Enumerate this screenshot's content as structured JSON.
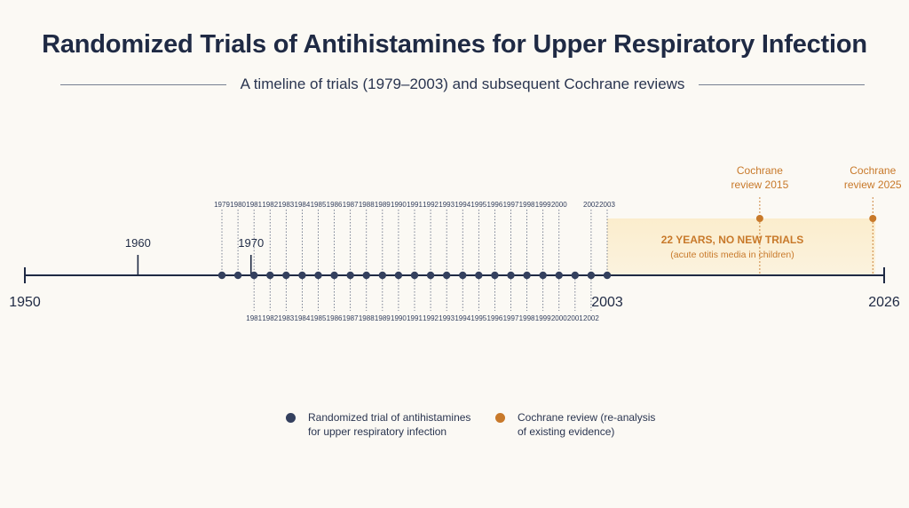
{
  "title": "Randomized Trials of Antihistamines for Upper Respiratory Infection",
  "subtitle": "A timeline of trials (1979–2003) and subsequent Cochrane reviews",
  "colors": {
    "trial": "#34405e",
    "review": "#c8792a",
    "axis": "#1f2a44",
    "gap_fill": "#fbedcd"
  },
  "chart_data": {
    "type": "timeline",
    "axis_start": 1950,
    "axis_end": 2026,
    "axis_start_label": "1950",
    "axis_end_label": "2026",
    "reference_years": [
      {
        "year": 1960,
        "label": "1960"
      },
      {
        "year": 1970,
        "label": "1970"
      }
    ],
    "trials": [
      {
        "year": 1979,
        "label": "1979",
        "pos": "above"
      },
      {
        "year": 1980,
        "label": "1980",
        "pos": "above"
      },
      {
        "year": 1981,
        "label": "1981",
        "pos": "above"
      },
      {
        "year": 1981,
        "label": "1981",
        "pos": "below"
      },
      {
        "year": 1982,
        "label": "1982",
        "pos": "above"
      },
      {
        "year": 1982,
        "label": "1982",
        "pos": "below"
      },
      {
        "year": 1983,
        "label": "1983",
        "pos": "above"
      },
      {
        "year": 1983,
        "label": "1983",
        "pos": "below"
      },
      {
        "year": 1984,
        "label": "1984",
        "pos": "above"
      },
      {
        "year": 1984,
        "label": "1984",
        "pos": "below"
      },
      {
        "year": 1985,
        "label": "1985",
        "pos": "above"
      },
      {
        "year": 1985,
        "label": "1985",
        "pos": "below"
      },
      {
        "year": 1986,
        "label": "1986",
        "pos": "above"
      },
      {
        "year": 1986,
        "label": "1986",
        "pos": "below"
      },
      {
        "year": 1987,
        "label": "1987",
        "pos": "above"
      },
      {
        "year": 1987,
        "label": "1987",
        "pos": "below"
      },
      {
        "year": 1988,
        "label": "1988",
        "pos": "above"
      },
      {
        "year": 1988,
        "label": "1988",
        "pos": "below"
      },
      {
        "year": 1989,
        "label": "1989",
        "pos": "above"
      },
      {
        "year": 1989,
        "label": "1989",
        "pos": "below"
      },
      {
        "year": 1990,
        "label": "1990",
        "pos": "above"
      },
      {
        "year": 1990,
        "label": "1990",
        "pos": "below"
      },
      {
        "year": 1991,
        "label": "1991",
        "pos": "above"
      },
      {
        "year": 1991,
        "label": "1991",
        "pos": "below"
      },
      {
        "year": 1992,
        "label": "1992",
        "pos": "above"
      },
      {
        "year": 1992,
        "label": "1992",
        "pos": "below"
      },
      {
        "year": 1993,
        "label": "1993",
        "pos": "above"
      },
      {
        "year": 1993,
        "label": "1993",
        "pos": "below"
      },
      {
        "year": 1994,
        "label": "1994",
        "pos": "above"
      },
      {
        "year": 1994,
        "label": "1994",
        "pos": "below"
      },
      {
        "year": 1995,
        "label": "1995",
        "pos": "above"
      },
      {
        "year": 1995,
        "label": "1995",
        "pos": "below"
      },
      {
        "year": 1996,
        "label": "1996",
        "pos": "above"
      },
      {
        "year": 1996,
        "label": "1996",
        "pos": "below"
      },
      {
        "year": 1997,
        "label": "1997",
        "pos": "above"
      },
      {
        "year": 1997,
        "label": "1997",
        "pos": "below"
      },
      {
        "year": 1998,
        "label": "1998",
        "pos": "above"
      },
      {
        "year": 1998,
        "label": "1998",
        "pos": "below"
      },
      {
        "year": 1999,
        "label": "1999",
        "pos": "above"
      },
      {
        "year": 1999,
        "label": "1999",
        "pos": "below"
      },
      {
        "year": 2000,
        "label": "2000",
        "pos": "above"
      },
      {
        "year": 2000,
        "label": "2000",
        "pos": "below"
      },
      {
        "year": 2001,
        "label": "2001",
        "pos": "below"
      },
      {
        "year": 2002,
        "label": "2002",
        "pos": "above"
      },
      {
        "year": 2002,
        "label": "2002",
        "pos": "below"
      },
      {
        "year": 2003,
        "label": "2003",
        "pos": "above"
      }
    ],
    "trial_end_year": 2003,
    "trial_end_label": "2003",
    "reviews": [
      {
        "year": 2015,
        "label": "Cochrane\nreview 2015"
      },
      {
        "year": 2025,
        "label": "Cochrane\nreview 2025"
      }
    ],
    "gap_annotation": {
      "start_year": 2003,
      "end_year": 2026,
      "headline": "22 YEARS, NO NEW TRIALS",
      "note": "(acute otitis media in children)"
    }
  },
  "legend": {
    "trial_label": "Randomized trial of antihistamines\nfor upper respiratory infection",
    "review_label": "Cochrane review (re-analysis\nof existing evidence)"
  }
}
